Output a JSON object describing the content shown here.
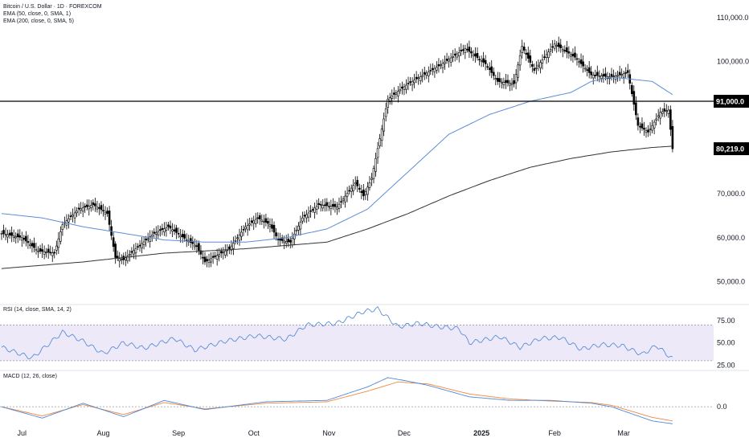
{
  "legend": {
    "title": "Bitcoin / U.S. Dollar · 1D · FOREXCOM",
    "ema50": "EMA (50, close, 0, SMA, 1)",
    "ema200": "EMA (200, close, 0, SMA, 5)"
  },
  "rsi_label": "RSI (14, close, SMA, 14, 2)",
  "macd_label": "MACD (12, 26, close)",
  "colors": {
    "ema50": "#5b8ed6",
    "ema200": "#333333",
    "rsi": "#5b8ed6",
    "rsi_band": "#ede9f9",
    "macd": "#4f87d9",
    "signal": "#f0883e",
    "candle": "#000000",
    "badge_bg": "#000000",
    "badge_text": "#ffffff"
  },
  "chart_data": [
    {
      "type": "candlestick",
      "title": "Bitcoin / U.S. Dollar · 1D · FOREXCOM",
      "x_ticks": [
        "Jul",
        "Aug",
        "Sep",
        "Oct",
        "Nov",
        "Dec",
        "2025",
        "Feb",
        "Mar"
      ],
      "y_ticks": [
        "110,000.0",
        "100,000.0",
        "70,000.0",
        "60,000.0",
        "50,000.0"
      ],
      "y_tick_values": [
        110000,
        100000,
        70000,
        60000,
        50000
      ],
      "ylim": [
        45000,
        114000
      ],
      "current_price": 80219,
      "current_price_label": "80,219.0",
      "level": 91000,
      "level_label": "91,000.0",
      "series": [
        {
          "name": "EMA (50, close, 0, SMA, 1)",
          "anchors": [
            [
              0,
              65500
            ],
            [
              20,
              64500
            ],
            [
              40,
              62500
            ],
            [
              60,
              61000
            ],
            [
              80,
              59500
            ],
            [
              100,
              59000
            ],
            [
              120,
              59000
            ],
            [
              140,
              60000
            ],
            [
              160,
              62000
            ],
            [
              180,
              66500
            ],
            [
              200,
              75000
            ],
            [
              220,
              83500
            ],
            [
              240,
              88000
            ],
            [
              260,
              91000
            ],
            [
              280,
              93000
            ],
            [
              290,
              95500
            ],
            [
              300,
              96500
            ],
            [
              320,
              95500
            ],
            [
              330,
              92500
            ]
          ]
        },
        {
          "name": "EMA (200, close, 0, SMA, 5)",
          "anchors": [
            [
              0,
              53000
            ],
            [
              40,
              54500
            ],
            [
              80,
              56500
            ],
            [
              120,
              57500
            ],
            [
              160,
              59000
            ],
            [
              180,
              62000
            ],
            [
              200,
              65500
            ],
            [
              220,
              69500
            ],
            [
              240,
              73000
            ],
            [
              260,
              76000
            ],
            [
              280,
              78000
            ],
            [
              300,
              79500
            ],
            [
              320,
              80500
            ],
            [
              330,
              80800
            ]
          ]
        }
      ]
    },
    {
      "type": "line",
      "title": "RSI (14, close, SMA, 14, 2)",
      "y_ticks": [
        "75.00",
        "50.00",
        "25.00"
      ],
      "y_tick_values": [
        75,
        50,
        25
      ],
      "ylim": [
        20,
        92
      ],
      "band": [
        30,
        70
      ],
      "series": [
        {
          "name": "RSI (14, close, SMA, 14, 2)",
          "anchors": [
            [
              0,
              45
            ],
            [
              15,
              33
            ],
            [
              30,
              62
            ],
            [
              40,
              52
            ],
            [
              50,
              38
            ],
            [
              60,
              50
            ],
            [
              70,
              44
            ],
            [
              85,
              55
            ],
            [
              95,
              42
            ],
            [
              110,
              52
            ],
            [
              125,
              58
            ],
            [
              140,
              54
            ],
            [
              150,
              70
            ],
            [
              165,
              72
            ],
            [
              178,
              85
            ],
            [
              185,
              88
            ],
            [
              195,
              68
            ],
            [
              205,
              72
            ],
            [
              215,
              68
            ],
            [
              225,
              66
            ],
            [
              230,
              50
            ],
            [
              245,
              57
            ],
            [
              255,
              45
            ],
            [
              265,
              55
            ],
            [
              275,
              56
            ],
            [
              285,
              43
            ],
            [
              295,
              48
            ],
            [
              305,
              47
            ],
            [
              315,
              37
            ],
            [
              322,
              47
            ],
            [
              330,
              32
            ]
          ]
        }
      ]
    },
    {
      "type": "line",
      "title": "MACD (12, 26, close)",
      "y_ticks": [
        "0.0"
      ],
      "y_tick_values": [
        0
      ],
      "ylim": [
        -2700,
        5000
      ],
      "series": [
        {
          "name": "MACD",
          "anchors": [
            [
              0,
              0
            ],
            [
              20,
              -1600
            ],
            [
              40,
              500
            ],
            [
              60,
              -1400
            ],
            [
              80,
              900
            ],
            [
              100,
              -400
            ],
            [
              130,
              700
            ],
            [
              160,
              900
            ],
            [
              180,
              2800
            ],
            [
              190,
              4100
            ],
            [
              200,
              3600
            ],
            [
              210,
              3000
            ],
            [
              230,
              1400
            ],
            [
              250,
              900
            ],
            [
              270,
              900
            ],
            [
              290,
              500
            ],
            [
              300,
              0
            ],
            [
              320,
              -2000
            ],
            [
              330,
              -2400
            ]
          ]
        },
        {
          "name": "Signal",
          "anchors": [
            [
              0,
              0
            ],
            [
              20,
              -1300
            ],
            [
              40,
              300
            ],
            [
              60,
              -1100
            ],
            [
              80,
              600
            ],
            [
              100,
              -300
            ],
            [
              130,
              500
            ],
            [
              160,
              700
            ],
            [
              180,
              2200
            ],
            [
              195,
              3500
            ],
            [
              210,
              3200
            ],
            [
              230,
              1800
            ],
            [
              250,
              1100
            ],
            [
              270,
              800
            ],
            [
              290,
              600
            ],
            [
              300,
              200
            ],
            [
              320,
              -1500
            ],
            [
              330,
              -2000
            ]
          ]
        }
      ]
    }
  ]
}
